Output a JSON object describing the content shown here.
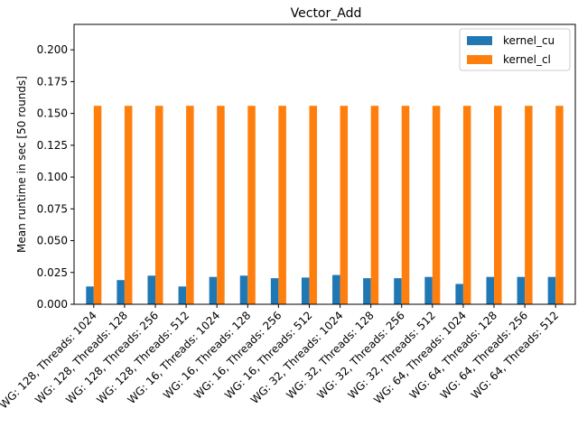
{
  "chart_data": {
    "type": "bar",
    "title": "Vector_Add",
    "xlabel": "",
    "ylabel": "Mean runtime in sec [50 rounds]",
    "ylim": [
      0,
      0.22
    ],
    "yticks": [
      "0.000",
      "0.025",
      "0.050",
      "0.075",
      "0.100",
      "0.125",
      "0.150",
      "0.175",
      "0.200"
    ],
    "grid": false,
    "legend_position": "top-right",
    "categories": [
      "WG: 128, Threads: 1024",
      "WG: 128, Threads: 128",
      "WG: 128, Threads: 256",
      "WG: 128, Threads: 512",
      "WG: 16, Threads: 1024",
      "WG: 16, Threads: 128",
      "WG: 16, Threads: 256",
      "WG: 16, Threads: 512",
      "WG: 32, Threads: 1024",
      "WG: 32, Threads: 128",
      "WG: 32, Threads: 256",
      "WG: 32, Threads: 512",
      "WG: 64, Threads: 1024",
      "WG: 64, Threads: 128",
      "WG: 64, Threads: 256",
      "WG: 64, Threads: 512"
    ],
    "series": [
      {
        "name": "kernel_cu",
        "color": "#1f77b4",
        "values": [
          0.014,
          0.019,
          0.0225,
          0.014,
          0.0215,
          0.0225,
          0.0205,
          0.021,
          0.023,
          0.0205,
          0.0205,
          0.0215,
          0.016,
          0.0215,
          0.0215,
          0.0215
        ]
      },
      {
        "name": "kernel_cl",
        "color": "#ff7f0e",
        "values": [
          0.156,
          0.156,
          0.156,
          0.156,
          0.156,
          0.156,
          0.156,
          0.156,
          0.156,
          0.156,
          0.156,
          0.156,
          0.156,
          0.156,
          0.156,
          0.156
        ]
      }
    ]
  }
}
